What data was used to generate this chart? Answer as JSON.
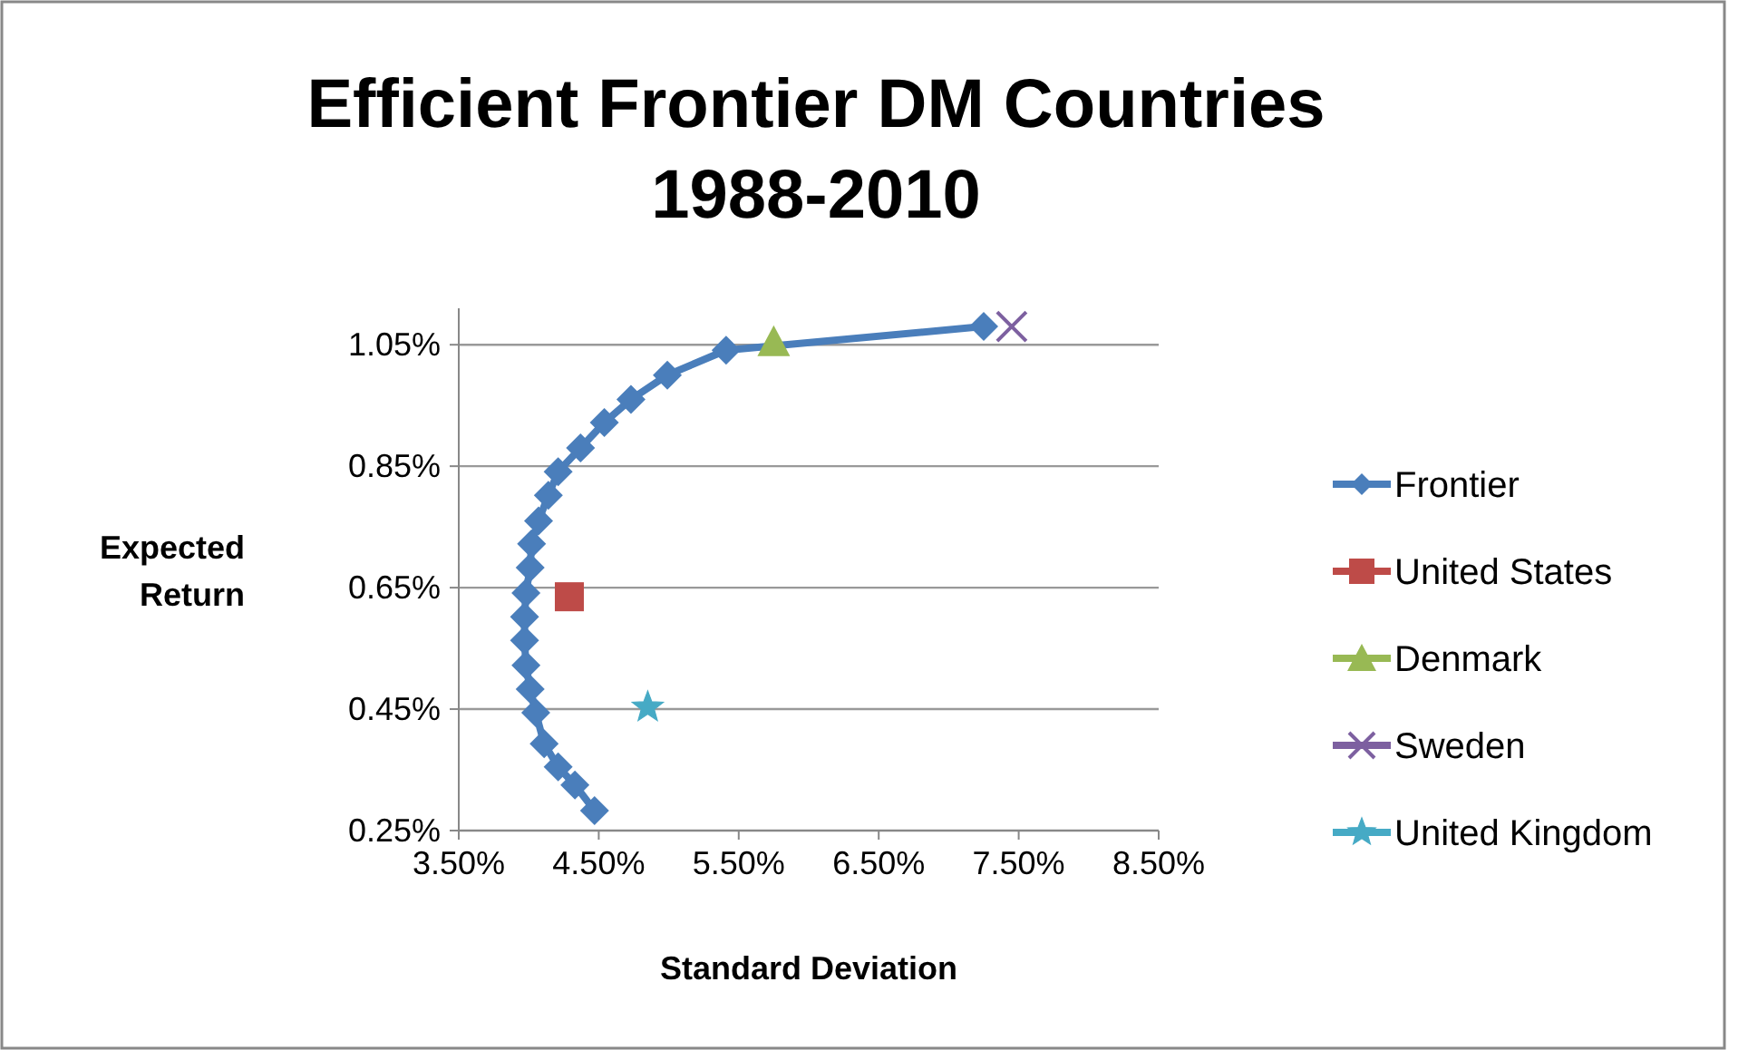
{
  "chart_data": {
    "type": "line",
    "title": "Efficient Frontier DM Countries\n1988-2010",
    "xlabel": "Standard Deviation",
    "ylabel": "Expected\nReturn",
    "xlim": [
      3.5,
      8.5
    ],
    "xticks": [
      {
        "value": 3.5,
        "label": "3.50%"
      },
      {
        "value": 4.5,
        "label": "4.50%"
      },
      {
        "value": 5.5,
        "label": "5.50%"
      },
      {
        "value": 6.5,
        "label": "6.50%"
      },
      {
        "value": 7.5,
        "label": "7.50%"
      },
      {
        "value": 8.5,
        "label": "8.50%"
      }
    ],
    "ylim": [
      0.25,
      1.11
    ],
    "yticks": [
      {
        "value": 0.25,
        "label": "0.25%"
      },
      {
        "value": 0.45,
        "label": "0.45%"
      },
      {
        "value": 0.65,
        "label": "0.65%"
      },
      {
        "value": 0.85,
        "label": "0.85%"
      },
      {
        "value": 1.05,
        "label": "1.05%"
      }
    ],
    "grid": "y",
    "legend": "right",
    "series": [
      {
        "name": "Frontier",
        "color": "#4a7ebb",
        "marker": "diamond",
        "x": [
          4.47,
          4.33,
          4.21,
          4.11,
          4.05,
          4.01,
          3.98,
          3.97,
          3.97,
          3.98,
          4.01,
          4.02,
          4.07,
          4.14,
          4.21,
          4.37,
          4.54,
          4.73,
          4.99,
          5.41,
          7.25
        ],
        "values": [
          0.283,
          0.325,
          0.355,
          0.393,
          0.444,
          0.483,
          0.522,
          0.563,
          0.602,
          0.641,
          0.683,
          0.722,
          0.76,
          0.802,
          0.841,
          0.88,
          0.922,
          0.96,
          1.0,
          1.041,
          1.08
        ]
      },
      {
        "name": "United States",
        "type": "scatter",
        "color": "#be4b48",
        "marker": "square",
        "x": [
          4.29
        ],
        "values": [
          0.635
        ]
      },
      {
        "name": "Denmark",
        "type": "scatter",
        "color": "#98b954",
        "marker": "triangle",
        "x": [
          5.75
        ],
        "values": [
          1.055
        ]
      },
      {
        "name": "Sweden",
        "type": "scatter",
        "color": "#7d60a0",
        "marker": "cross",
        "x": [
          7.45
        ],
        "values": [
          1.08
        ]
      },
      {
        "name": "United Kingdom",
        "type": "scatter",
        "color": "#46aac5",
        "marker": "star",
        "x": [
          4.85
        ],
        "values": [
          0.453
        ]
      }
    ]
  }
}
